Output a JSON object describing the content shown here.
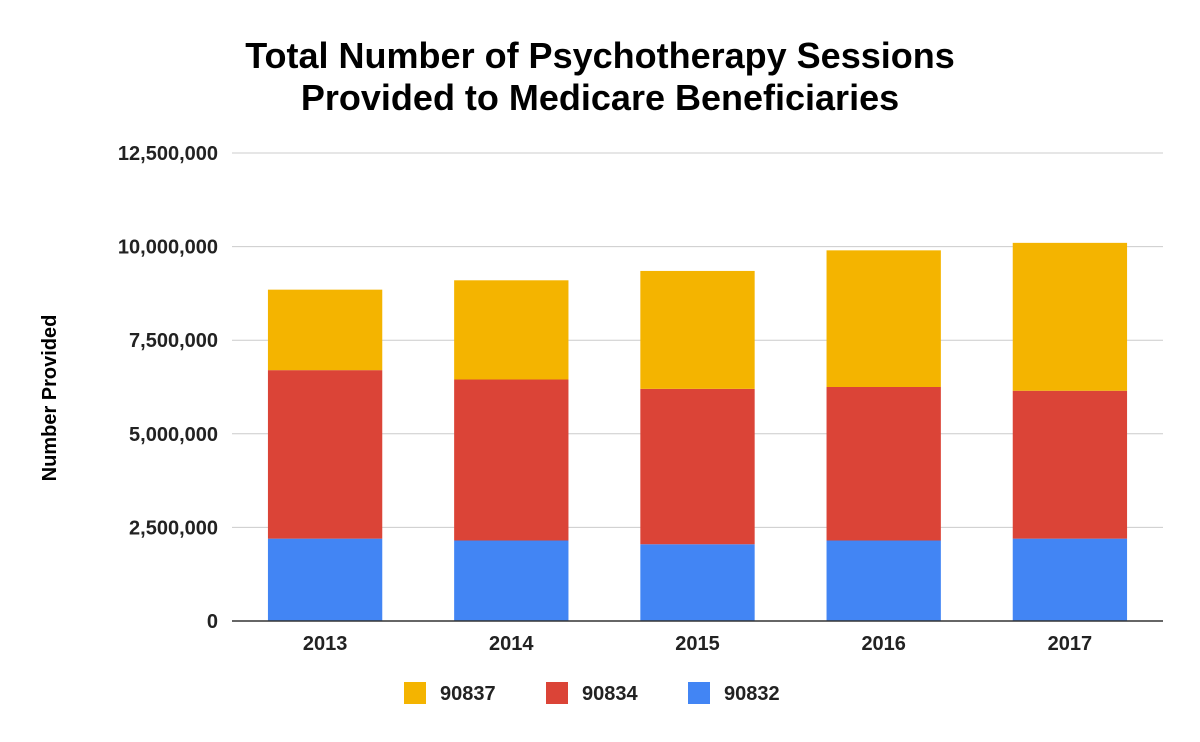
{
  "chart_data": {
    "type": "bar",
    "stacked": true,
    "title": "Total Number of Psychotherapy Sessions Provided to Medicare Beneficiaries",
    "title_lines": [
      "Total Number of Psychotherapy Sessions",
      "Provided to Medicare Beneficiaries"
    ],
    "xlabel": "",
    "ylabel": "Number Provided",
    "ylim": [
      0,
      12500000
    ],
    "yticks": [
      0,
      2500000,
      5000000,
      7500000,
      10000000,
      12500000
    ],
    "ytick_labels": [
      "0",
      "2,500,000",
      "5,000,000",
      "7,500,000",
      "10,000,000",
      "12,500,000"
    ],
    "categories": [
      "2013",
      "2014",
      "2015",
      "2016",
      "2017"
    ],
    "grid": true,
    "legend_position": "bottom",
    "series": [
      {
        "name": "90832",
        "color": "#4285f4",
        "values": [
          2200000,
          2150000,
          2050000,
          2150000,
          2200000
        ]
      },
      {
        "name": "90834",
        "color": "#db4437",
        "values": [
          4500000,
          4300000,
          4150000,
          4100000,
          3950000
        ]
      },
      {
        "name": "90837",
        "color": "#f4b400",
        "values": [
          2150000,
          2650000,
          3150000,
          3650000,
          3950000
        ]
      }
    ],
    "legend_order": [
      "90837",
      "90834",
      "90832"
    ]
  }
}
